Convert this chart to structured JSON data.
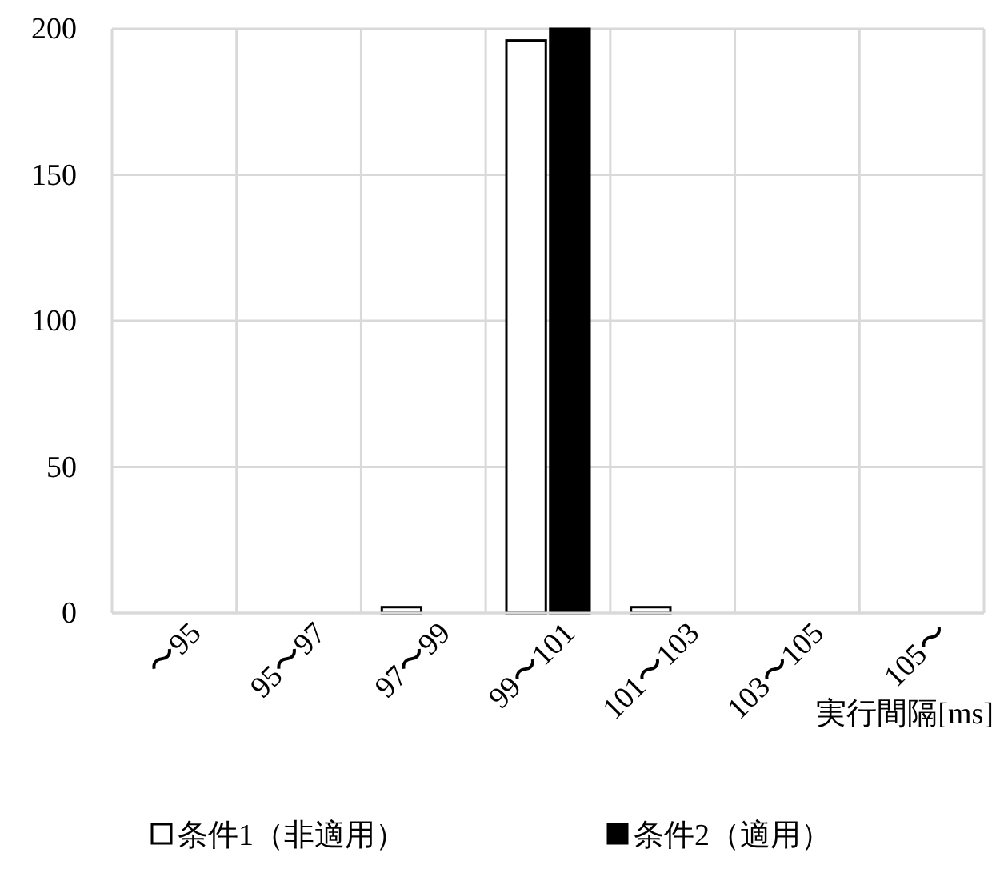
{
  "chart_data": {
    "type": "bar",
    "xlabel": "実行間隔[ms]",
    "categories": [
      "〜95",
      "95〜97",
      "97〜99",
      "99〜101",
      "101〜103",
      "103〜105",
      "105〜"
    ],
    "series": [
      {
        "name": "条件1（非適用）",
        "color": "#ffffff",
        "values": [
          0,
          0,
          2,
          196,
          2,
          0,
          0
        ]
      },
      {
        "name": "条件2（適用）",
        "color": "#000000",
        "values": [
          0,
          0,
          0,
          200,
          0,
          0,
          0
        ]
      }
    ],
    "ylim": [
      0,
      200
    ],
    "yticks": [
      0,
      50,
      100,
      150,
      200
    ],
    "grid": true,
    "legend": "bottom"
  }
}
